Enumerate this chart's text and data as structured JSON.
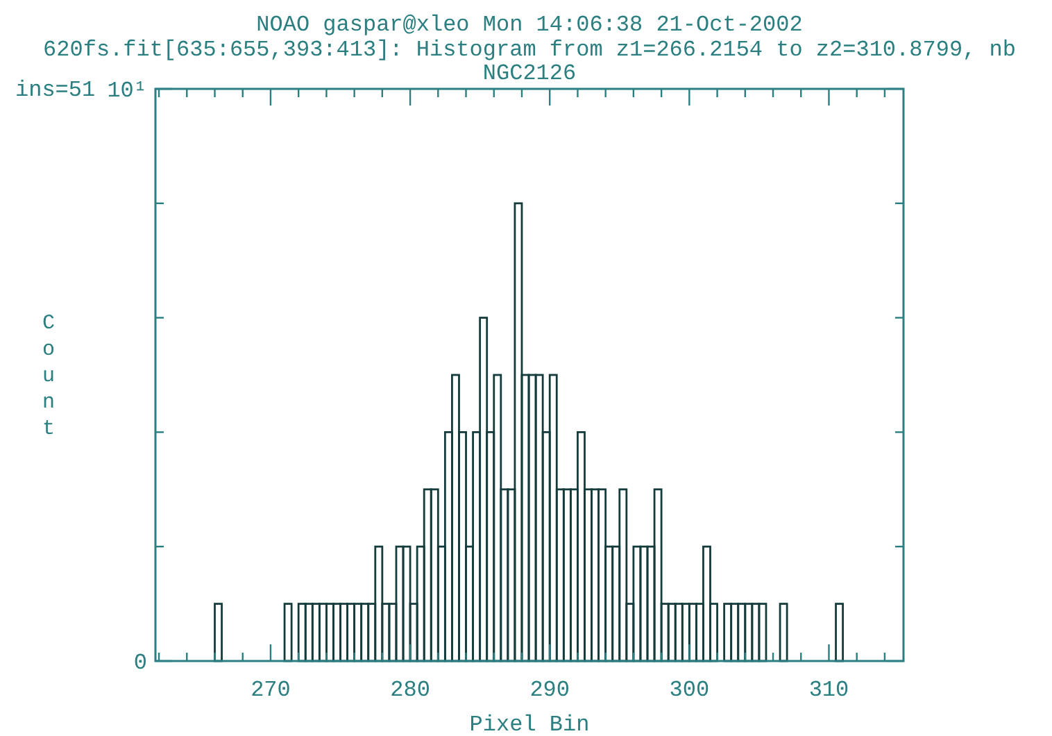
{
  "chart_data": {
    "type": "histogram",
    "title": "NOAO gaspar@xleo Mon 14:06:38 21-Oct-2002",
    "subtitle": "620fs.fit[635:655,393:413]: Histogram from z1=266.2154 to z2=310.8799, nb",
    "annotations": [
      "NGC2126",
      "ins=51"
    ],
    "xlabel": "Pixel Bin",
    "ylabel": "Count",
    "bins": [
      266,
      266.5,
      267,
      267.5,
      268,
      268.5,
      269,
      269.5,
      270,
      270.5,
      271,
      271.5,
      272,
      272.5,
      273,
      273.5,
      274,
      274.5,
      275,
      275.5,
      276,
      276.5,
      277,
      277.5,
      278,
      278.5,
      279,
      279.5,
      280,
      280.5,
      281,
      281.5,
      282,
      282.5,
      283,
      283.5,
      284,
      284.5,
      285,
      285.5,
      286,
      286.5,
      287,
      287.5,
      288,
      288.5,
      289,
      289.5,
      290,
      290.5,
      291,
      291.5,
      292,
      292.5,
      293,
      293.5,
      294,
      294.5,
      295,
      295.5,
      296,
      296.5,
      297,
      297.5,
      298,
      298.5,
      299,
      299.5,
      300,
      300.5,
      301,
      301.5,
      302,
      302.5,
      303,
      303.5,
      304,
      304.5,
      305,
      305.5,
      306,
      306.5,
      307,
      307.5,
      308,
      308.5,
      309,
      309.5,
      310,
      310.5,
      311
    ],
    "values": [
      1,
      0,
      0,
      0,
      0,
      0,
      0,
      0,
      0,
      0,
      1,
      0,
      1,
      1,
      1,
      1,
      1,
      1,
      1,
      1,
      1,
      1,
      1,
      2,
      1,
      1,
      2,
      2,
      1,
      2,
      3,
      3,
      2,
      4,
      5,
      4,
      2,
      4,
      6,
      4,
      5,
      3,
      3,
      8,
      5,
      5,
      5,
      4,
      5,
      3,
      3,
      3,
      4,
      3,
      3,
      3,
      2,
      2,
      3,
      1,
      2,
      2,
      2,
      3,
      1,
      1,
      1,
      1,
      1,
      1,
      2,
      1,
      0,
      1,
      1,
      1,
      1,
      1,
      1,
      0,
      0,
      1,
      0,
      0,
      0,
      0,
      0,
      0,
      0,
      1
    ],
    "color": "#143c3c",
    "xlim": [
      261.749,
      315.346
    ],
    "ylim": [
      0,
      10
    ],
    "xticks": [
      {
        "value": 262,
        "label": null
      },
      {
        "value": 264,
        "label": null
      },
      {
        "value": 266,
        "label": null
      },
      {
        "value": 268,
        "label": null
      },
      270,
      {
        "value": 272,
        "label": null
      },
      {
        "value": 274,
        "label": null
      },
      {
        "value": 276,
        "label": null
      },
      {
        "value": 278,
        "label": null
      },
      280,
      {
        "value": 282,
        "label": null
      },
      {
        "value": 284,
        "label": null
      },
      {
        "value": 286,
        "label": null
      },
      {
        "value": 288,
        "label": null
      },
      290,
      {
        "value": 292,
        "label": null
      },
      {
        "value": 294,
        "label": null
      },
      {
        "value": 296,
        "label": null
      },
      {
        "value": 298,
        "label": null
      },
      300,
      {
        "value": 302,
        "label": null
      },
      {
        "value": 304,
        "label": null
      },
      {
        "value": 306,
        "label": null
      },
      {
        "value": 308,
        "label": null
      },
      310,
      {
        "value": 312,
        "label": null
      },
      {
        "value": 314,
        "label": null
      }
    ],
    "yticks": [
      0,
      {
        "value": 2,
        "label": null
      },
      {
        "value": 4,
        "label": null
      },
      {
        "value": 6,
        "label": null
      },
      {
        "value": 8,
        "label": null
      },
      {
        "value": 10,
        "label": "10¹"
      }
    ]
  }
}
